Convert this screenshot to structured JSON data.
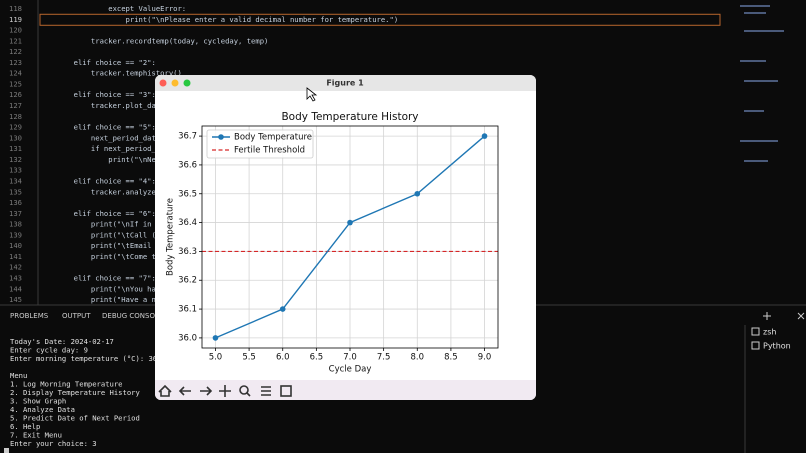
{
  "editor": {
    "lines": [
      {
        "number": 118,
        "code": "                except ValueError:"
      },
      {
        "number": 119,
        "code": "                    print(\"\\nPlease enter a valid decimal number for temperature.\")",
        "current": true
      },
      {
        "number": 120
      },
      {
        "number": 121,
        "code": "            tracker.recordtemp(today, cycleday, temp)"
      },
      {
        "number": 122
      },
      {
        "number": 123,
        "code": "        elif choice == \"2\":"
      },
      {
        "number": 124,
        "code": "            tracker.temphistory()"
      },
      {
        "number": 125
      },
      {
        "number": 126,
        "code": "        elif choice == \"3\":"
      },
      {
        "number": 127,
        "code": "            tracker.plot_da"
      },
      {
        "number": 128
      },
      {
        "number": 129,
        "code": "        elif choice == \"5\":"
      },
      {
        "number": 130,
        "code": "            next_period_dat"
      },
      {
        "number": 131,
        "code": "            if next_period_"
      },
      {
        "number": 132,
        "code": "                print(\"\\nNe"
      },
      {
        "number": 133
      },
      {
        "number": 134,
        "code": "        elif choice == \"4\":"
      },
      {
        "number": 135,
        "code": "            tracker.analyze"
      },
      {
        "number": 136
      },
      {
        "number": 137,
        "code": "        elif choice == \"6\":"
      },
      {
        "number": 138,
        "code": "            print(\"\\nIf in"
      },
      {
        "number": 139,
        "code": "            print(\"\\tCall ("
      },
      {
        "number": 140,
        "code": "            print(\"\\tEmail"
      },
      {
        "number": 141,
        "code": "            print(\"\\tCome t"
      },
      {
        "number": 142
      },
      {
        "number": 143,
        "code": "        elif choice == \"7\":"
      },
      {
        "number": 144,
        "code": "            print(\"\\nYou ha"
      },
      {
        "number": 145,
        "code": "            print(\"Have a n"
      }
    ]
  },
  "panel": {
    "tabs": [
      "PROBLEMS",
      "OUTPUT",
      "DEBUG CONSOL"
    ],
    "terminal": [
      [
        "Today's Date: 2024-02-17",
        "Enter cycle day: 9",
        "Enter morning temperature (°C): 36."
      ],
      [
        "Menu",
        "1. Log Morning Temperature",
        "2. Display Temperature History",
        "3. Show Graph",
        "4. Analyze Data",
        "5. Predict Date of Next Period",
        "6. Help",
        "7. Exit Menu",
        "Enter your choice: 3"
      ]
    ],
    "sessions": [
      "zsh",
      "Python"
    ]
  },
  "figure": {
    "window_title": "Figure 1",
    "chart_data": {
      "type": "line",
      "title": "Body Temperature History",
      "x_label": "Cycle Day",
      "y_label": "Body Temperature",
      "x": [
        5,
        6,
        7,
        8,
        9
      ],
      "series": [
        {
          "name": "Body Temperature",
          "color": "#1f77b4",
          "values": [
            36.0,
            36.1,
            36.4,
            36.5,
            36.7
          ]
        }
      ],
      "threshold": {
        "name": "Fertile Threshold",
        "value": 36.3,
        "color": "#d62728"
      },
      "xlim": [
        4.8,
        9.2
      ],
      "ylim": [
        35.965,
        36.735
      ],
      "xticks": [
        {
          "value": 5,
          "label": "5.0"
        },
        5.5,
        {
          "value": 6,
          "label": "6.0"
        },
        6.5,
        {
          "value": 7,
          "label": "7.0"
        },
        7.5,
        {
          "value": 8,
          "label": "8.0"
        },
        8.5,
        {
          "value": 9,
          "label": "9.0"
        }
      ],
      "yticks": [
        {
          "value": 36,
          "label": "36.0"
        },
        36.1,
        36.2,
        36.3,
        36.4,
        36.5,
        36.6,
        36.7
      ],
      "grid": true,
      "legend": "upper left"
    }
  }
}
